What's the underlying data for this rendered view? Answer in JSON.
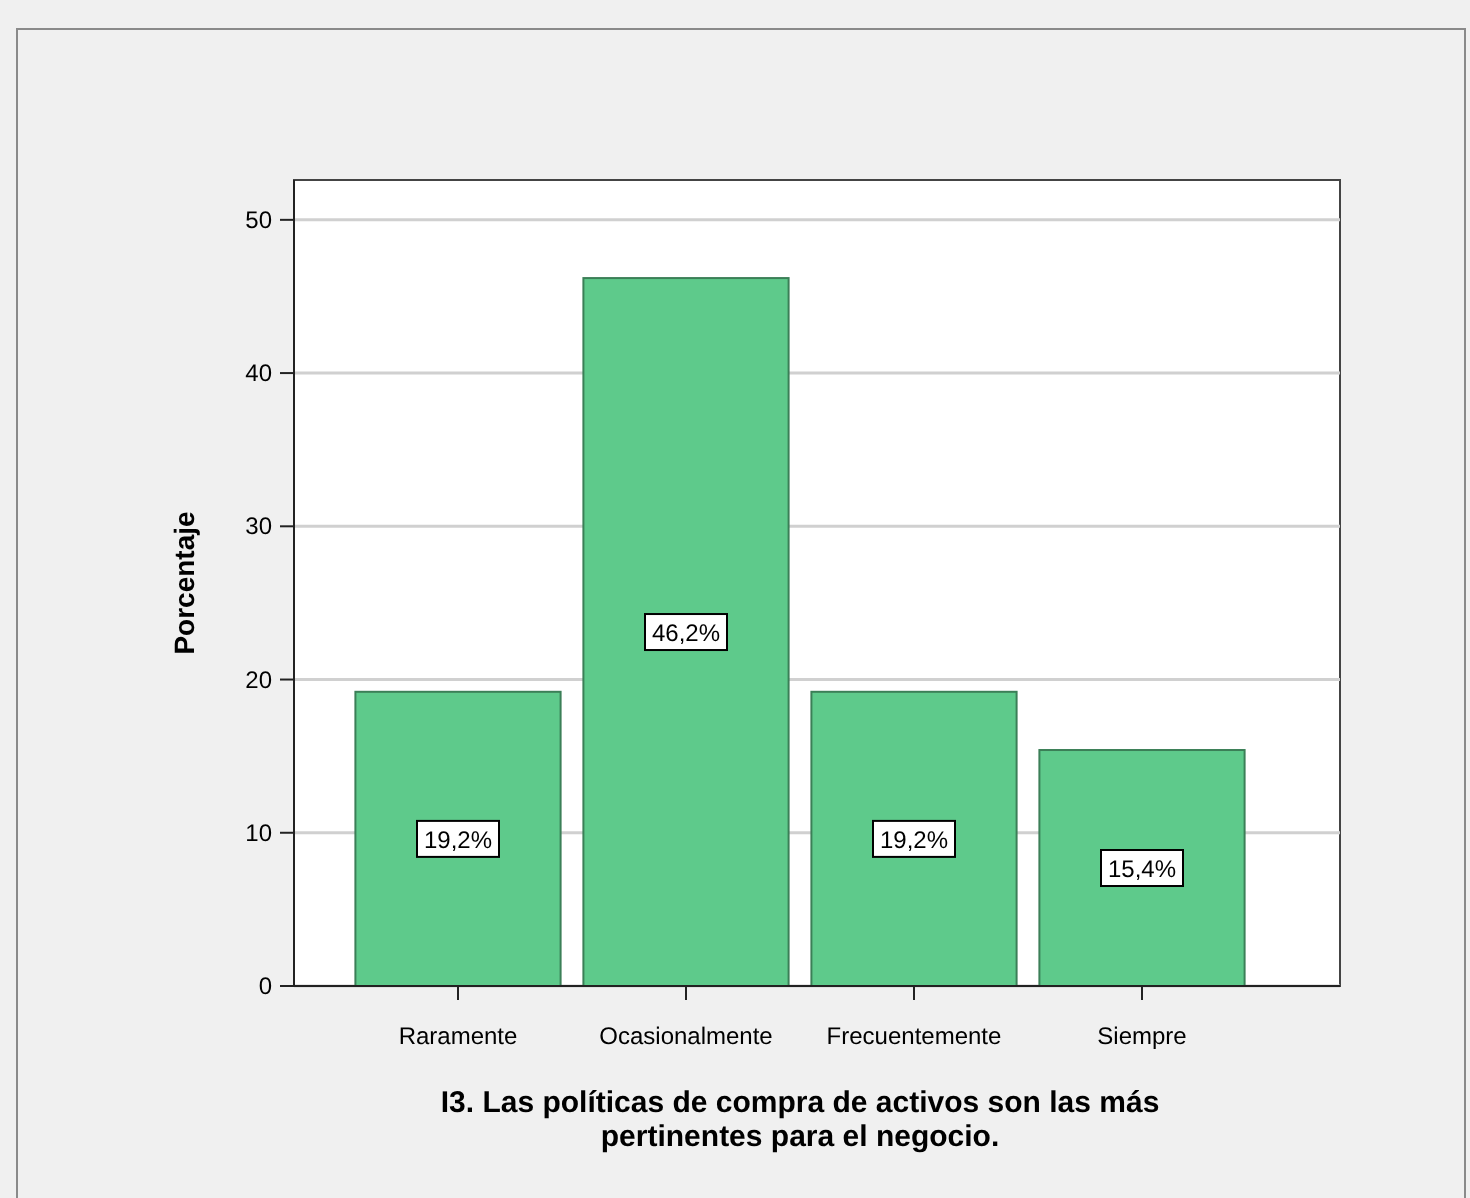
{
  "chart_data": {
    "type": "bar",
    "xlabel": "I3. Las políticas de compra de activos son las más pertinentes para el negocio.",
    "ylabel": "Porcentaje",
    "categories": [
      "Raramente",
      "Ocasionalmente",
      "Frecuentemente",
      "Siempre"
    ],
    "values": [
      19.2,
      46.2,
      19.2,
      15.4
    ],
    "color": "#5eca8b",
    "value_labels": [
      "19,2%",
      "46,2%",
      "19,2%",
      "15,4%"
    ],
    "ylim": [
      0,
      52.6
    ],
    "yticks": [
      0,
      10,
      20,
      30,
      40,
      50
    ],
    "grid": "y"
  }
}
